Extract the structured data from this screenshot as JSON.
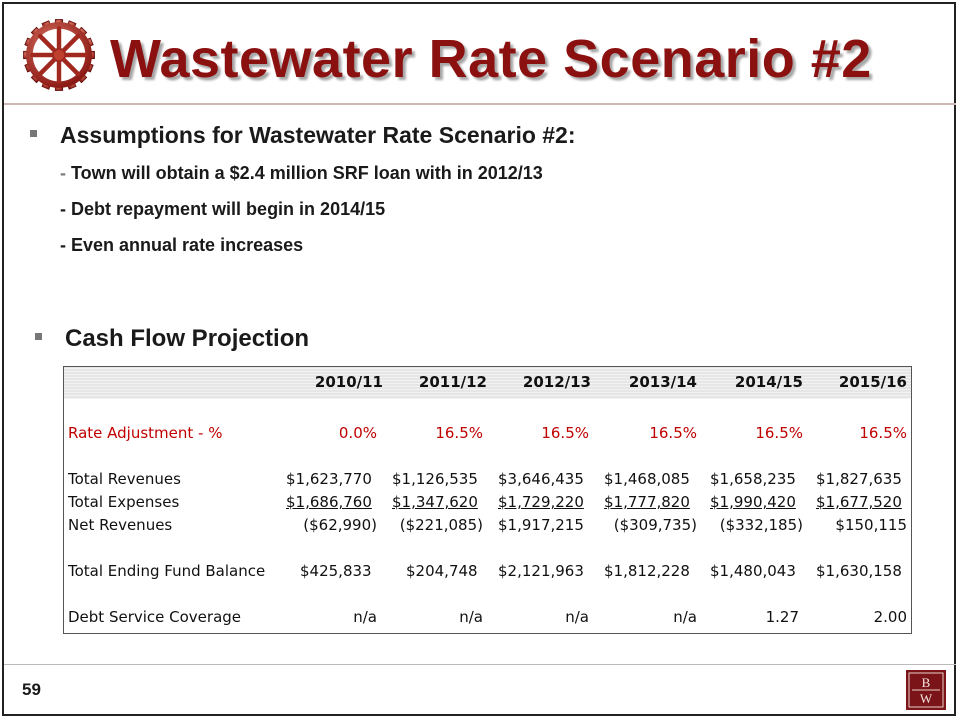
{
  "slide": {
    "title": "Wastewater Rate Scenario #2",
    "page_number": "59",
    "colors": {
      "title": "#8b1010",
      "accent_red": "#c00000",
      "header_band": "#e6e6e6"
    },
    "logo_icon": "gear-wheel-icon",
    "corner_logo": {
      "icon": "bw-logo-icon",
      "text_top": "B",
      "text_bottom": "W"
    }
  },
  "assumptions": {
    "heading": "Assumptions for Wastewater Rate Scenario #2:",
    "items": [
      {
        "dash": "-",
        "text": "Town will obtain a $2.4 million SRF loan with in 2012/13"
      },
      {
        "dash": "-",
        "text": "Debt repayment will begin in 2014/15"
      },
      {
        "dash": "-",
        "text": "Even annual rate increases"
      }
    ]
  },
  "cash_flow": {
    "heading": "Cash Flow Projection",
    "columns": [
      "2010/11",
      "2011/12",
      "2012/13",
      "2013/14",
      "2014/15",
      "2015/16"
    ],
    "rows": {
      "rate_adjustment": {
        "label": "Rate Adjustment - %",
        "values": [
          "0.0%",
          "16.5%",
          "16.5%",
          "16.5%",
          "16.5%",
          "16.5%"
        ]
      },
      "total_revenues": {
        "label": "Total Revenues",
        "values": [
          "$1,623,770",
          "$1,126,535",
          "$3,646,435",
          "$1,468,085",
          "$1,658,235",
          "$1,827,635"
        ]
      },
      "total_expenses": {
        "label": "Total Expenses",
        "values": [
          "$1,686,760",
          "$1,347,620",
          "$1,729,220",
          "$1,777,820",
          "$1,990,420",
          "$1,677,520"
        ]
      },
      "net_revenues": {
        "label": "Net Revenues",
        "values": [
          "($62,990)",
          "($221,085)",
          "$1,917,215",
          "($309,735)",
          "($332,185)",
          "$150,115"
        ]
      },
      "ending_fund_balance": {
        "label": "Total Ending Fund Balance",
        "values": [
          "$425,833",
          "$204,748",
          "$2,121,963",
          "$1,812,228",
          "$1,480,043",
          "$1,630,158"
        ]
      },
      "debt_service_coverage": {
        "label": "Debt Service Coverage",
        "values": [
          "n/a",
          "n/a",
          "n/a",
          "n/a",
          "1.27",
          "2.00"
        ]
      }
    }
  }
}
